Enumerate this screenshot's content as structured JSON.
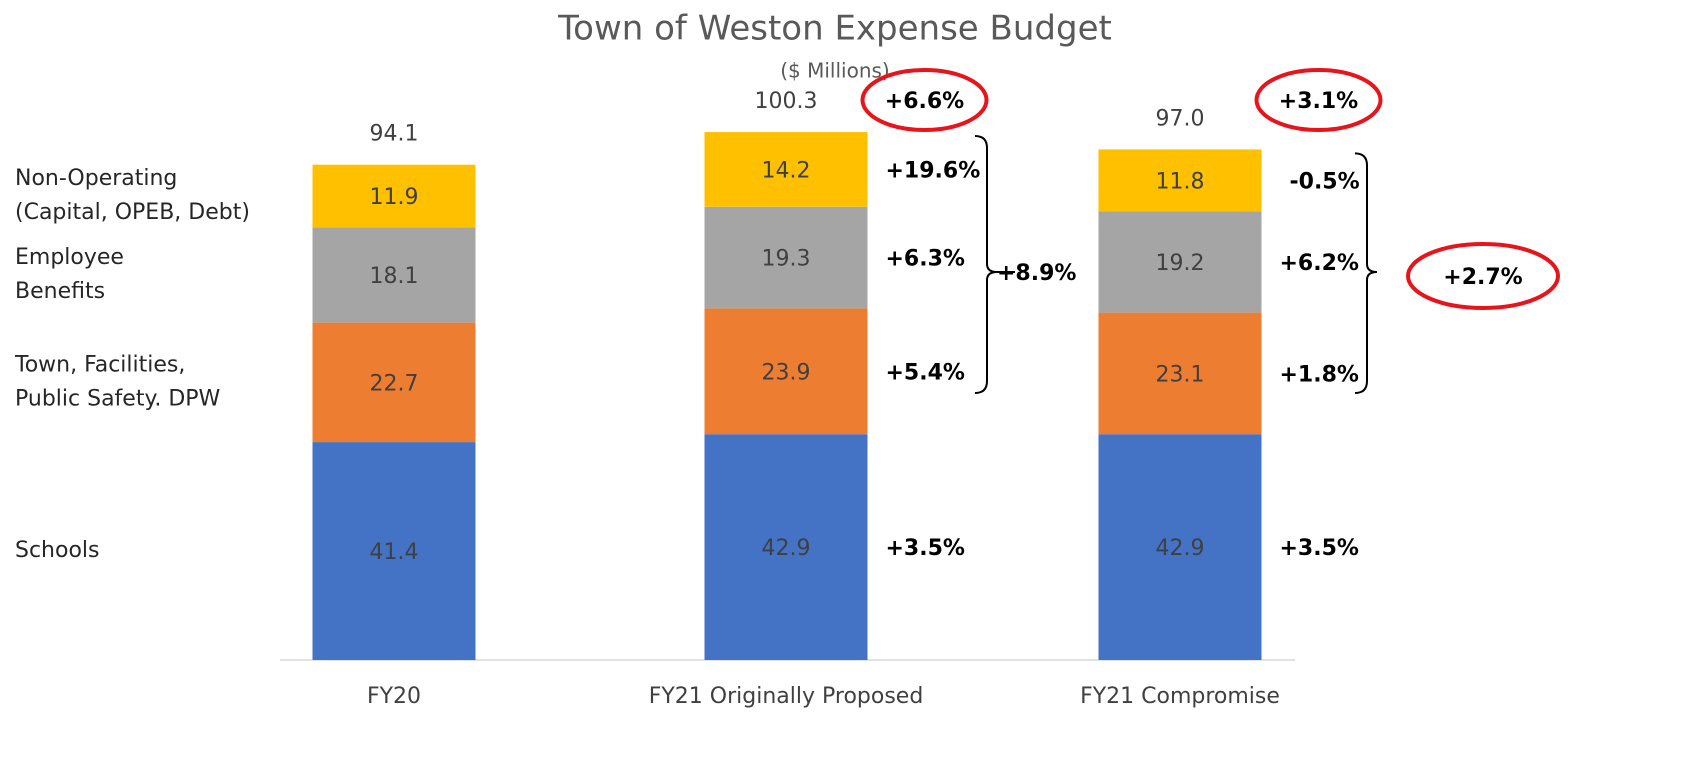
{
  "chart_data": {
    "type": "stacked_bar",
    "title": "Town of Weston Expense Budget",
    "subtitle": "($ Millions)",
    "categories": [
      "FY20",
      "FY21 Originally Proposed",
      "FY21 Compromise"
    ],
    "ylim": [
      0,
      110
    ],
    "series": [
      {
        "name": [
          "Schools"
        ],
        "color": "#4472c4",
        "values": [
          41.4,
          42.9,
          42.9
        ],
        "changes": [
          null,
          "+3.5%",
          "+3.5%"
        ]
      },
      {
        "name": [
          "Town, Facilities,",
          "Public Safety. DPW"
        ],
        "color": "#ed7d31",
        "values": [
          22.7,
          23.9,
          23.1
        ],
        "changes": [
          null,
          "+5.4%",
          "+1.8%"
        ]
      },
      {
        "name": [
          "Employee",
          "Benefits"
        ],
        "color": "#a5a5a5",
        "values": [
          18.1,
          19.3,
          19.2
        ],
        "changes": [
          null,
          "+6.3%",
          "+6.2%"
        ]
      },
      {
        "name": [
          "Non-Operating",
          "(Capital, OPEB, Debt)"
        ],
        "color": "#ffc000",
        "values": [
          11.9,
          14.2,
          11.8
        ],
        "changes": [
          null,
          "+19.6%",
          "-0.5%"
        ]
      }
    ],
    "totals": {
      "values": [
        94.1,
        100.3,
        97.0
      ],
      "value_labels": [
        "94.1",
        "100.3",
        "97.0"
      ]
    },
    "total_changes": [
      null,
      "+6.6%",
      "+3.1%"
    ],
    "group_changes": [
      null,
      "+8.9%",
      "+2.7%"
    ],
    "highlight_color": "#e8141b"
  }
}
